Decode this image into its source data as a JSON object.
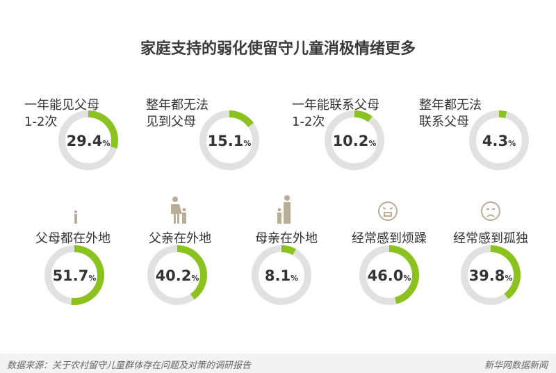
{
  "title": "家庭支持的弱化使留守儿童消极情绪更多",
  "colors": {
    "accent": "#8cc21f",
    "track": "#e1e1e1",
    "icon": "#b8ad96"
  },
  "chart_data": {
    "type": "donut",
    "title": "家庭支持的弱化使留守儿童消极情绪更多",
    "unit": "%",
    "items": [
      {
        "label": "一年能见父母\n1-2次",
        "value": 29.4,
        "display": "29.4"
      },
      {
        "label": "整年都无法\n见到父母",
        "value": 15.1,
        "display": "15.1"
      },
      {
        "label": "一年能联系父母\n1-2次",
        "value": 10.2,
        "display": "10.2"
      },
      {
        "label": "整年都无法\n联系父母",
        "value": 4.3,
        "display": "4.3"
      },
      {
        "label": "父母都在外地",
        "value": 51.7,
        "display": "51.7",
        "icon": "small-person-icon"
      },
      {
        "label": "父亲在外地",
        "value": 40.2,
        "display": "40.2",
        "icon": "mother-child-icon"
      },
      {
        "label": "母亲在外地",
        "value": 8.1,
        "display": "8.1",
        "icon": "father-child-icon"
      },
      {
        "label": "经常感到烦躁",
        "value": 46.0,
        "display": "46.0",
        "icon": "angry-face-icon"
      },
      {
        "label": "经常感到孤独",
        "value": 39.8,
        "display": "39.8",
        "icon": "sad-face-icon"
      }
    ]
  },
  "footer": {
    "source": "数据来源：关于农村留守儿童群体存在问题及对策的调研报告",
    "brand": "新华网数据新闻"
  }
}
